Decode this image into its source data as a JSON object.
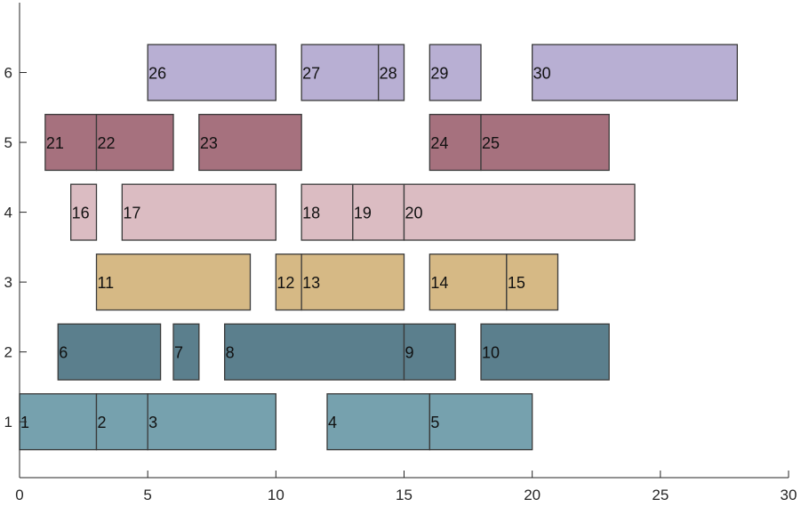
{
  "chart_data": {
    "type": "bar",
    "orientation": "horizontal",
    "title": "",
    "xlabel": "",
    "ylabel": "",
    "xlim": [
      0,
      30
    ],
    "ylim": [
      0.2,
      7.0
    ],
    "xticks": [
      0,
      5,
      10,
      15,
      20,
      25,
      30
    ],
    "yticks": [
      1,
      2,
      3,
      4,
      5,
      6
    ],
    "grid": false,
    "legend": "none",
    "row_colors": {
      "1": "#76a1ae",
      "2": "#5b7f8d",
      "3": "#d6b985",
      "4": "#dbbcc2",
      "5": "#a6717e",
      "6": "#b8afd3"
    },
    "bars": [
      {
        "label": "1",
        "row": 1,
        "start": 0,
        "end": 3
      },
      {
        "label": "2",
        "row": 1,
        "start": 3,
        "end": 5
      },
      {
        "label": "3",
        "row": 1,
        "start": 5,
        "end": 10
      },
      {
        "label": "4",
        "row": 1,
        "start": 12,
        "end": 16
      },
      {
        "label": "5",
        "row": 1,
        "start": 16,
        "end": 20
      },
      {
        "label": "6",
        "row": 2,
        "start": 1.5,
        "end": 5.5
      },
      {
        "label": "7",
        "row": 2,
        "start": 6,
        "end": 7
      },
      {
        "label": "8",
        "row": 2,
        "start": 8,
        "end": 15
      },
      {
        "label": "9",
        "row": 2,
        "start": 15,
        "end": 17
      },
      {
        "label": "10",
        "row": 2,
        "start": 18,
        "end": 23
      },
      {
        "label": "11",
        "row": 3,
        "start": 3,
        "end": 9
      },
      {
        "label": "12",
        "row": 3,
        "start": 10,
        "end": 11
      },
      {
        "label": "13",
        "row": 3,
        "start": 11,
        "end": 15
      },
      {
        "label": "14",
        "row": 3,
        "start": 16,
        "end": 19
      },
      {
        "label": "15",
        "row": 3,
        "start": 19,
        "end": 21
      },
      {
        "label": "16",
        "row": 4,
        "start": 2,
        "end": 3
      },
      {
        "label": "17",
        "row": 4,
        "start": 4,
        "end": 10
      },
      {
        "label": "18",
        "row": 4,
        "start": 11,
        "end": 13
      },
      {
        "label": "19",
        "row": 4,
        "start": 13,
        "end": 15
      },
      {
        "label": "20",
        "row": 4,
        "start": 15,
        "end": 24
      },
      {
        "label": "21",
        "row": 5,
        "start": 1,
        "end": 3
      },
      {
        "label": "22",
        "row": 5,
        "start": 3,
        "end": 6
      },
      {
        "label": "23",
        "row": 5,
        "start": 7,
        "end": 11
      },
      {
        "label": "24",
        "row": 5,
        "start": 16,
        "end": 18
      },
      {
        "label": "25",
        "row": 5,
        "start": 18,
        "end": 23
      },
      {
        "label": "26",
        "row": 6,
        "start": 5,
        "end": 10
      },
      {
        "label": "27",
        "row": 6,
        "start": 11,
        "end": 14
      },
      {
        "label": "28",
        "row": 6,
        "start": 14,
        "end": 15
      },
      {
        "label": "29",
        "row": 6,
        "start": 16,
        "end": 18
      },
      {
        "label": "30",
        "row": 6,
        "start": 20,
        "end": 28
      }
    ]
  }
}
